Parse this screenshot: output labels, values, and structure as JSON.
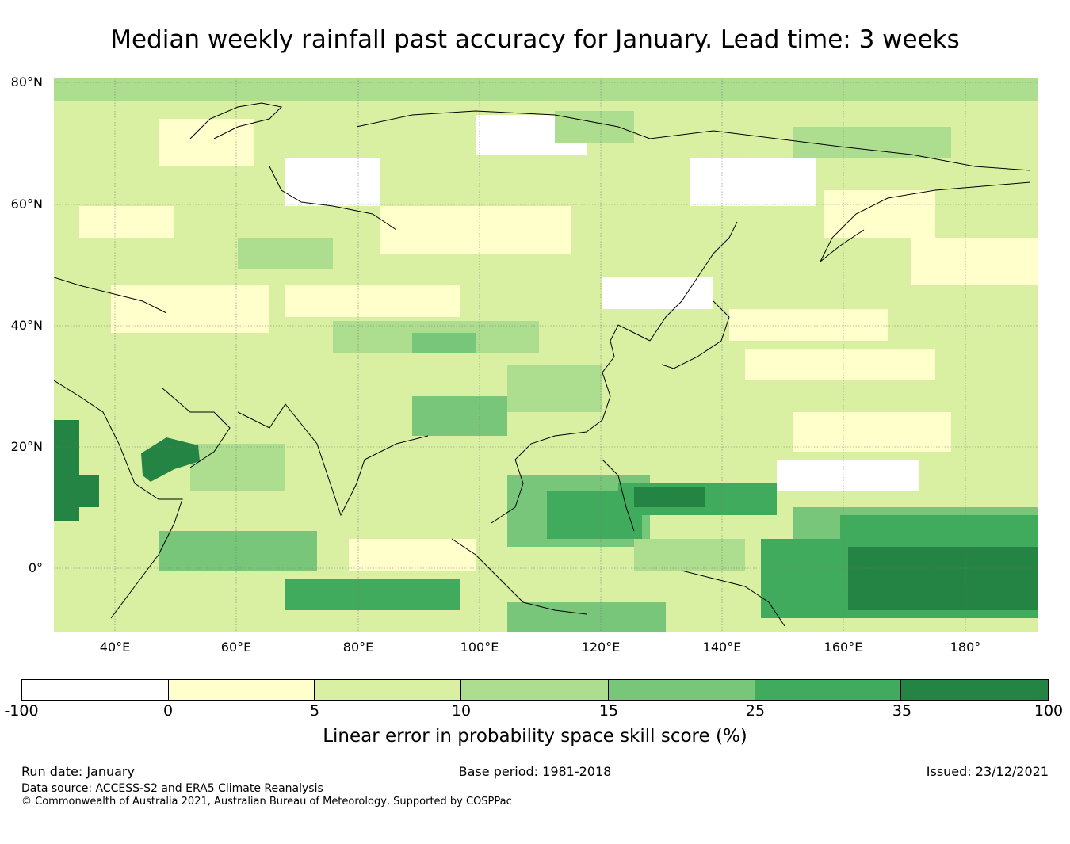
{
  "title": "Median weekly rainfall past accuracy for January. Lead time: 3 weeks",
  "map": {
    "lat_labels": [
      "80°N",
      "60°N",
      "40°N",
      "20°N",
      "0°"
    ],
    "lon_labels": [
      "40°E",
      "60°E",
      "80°E",
      "100°E",
      "120°E",
      "140°E",
      "160°E",
      "180°"
    ],
    "colors": [
      "#ffffff",
      "#ffffcc",
      "#d9f0a3",
      "#addd8e",
      "#78c679",
      "#41ab5d",
      "#238443"
    ]
  },
  "colorbar": {
    "tick_labels": [
      "-100",
      "0",
      "5",
      "10",
      "15",
      "25",
      "35",
      "100"
    ],
    "title": "Linear error in probability space skill score (%)"
  },
  "footer": {
    "run_date": "Run date: January",
    "base_period": "Base period: 1981-2018",
    "issued": "Issued: 23/12/2021",
    "data_source": "Data source: ACCESS-S2 and ERA5 Climate Reanalysis",
    "copyright": "© Commonwealth of Australia 2021, Australian Bureau of Meteorology, Supported by COSPPac"
  }
}
